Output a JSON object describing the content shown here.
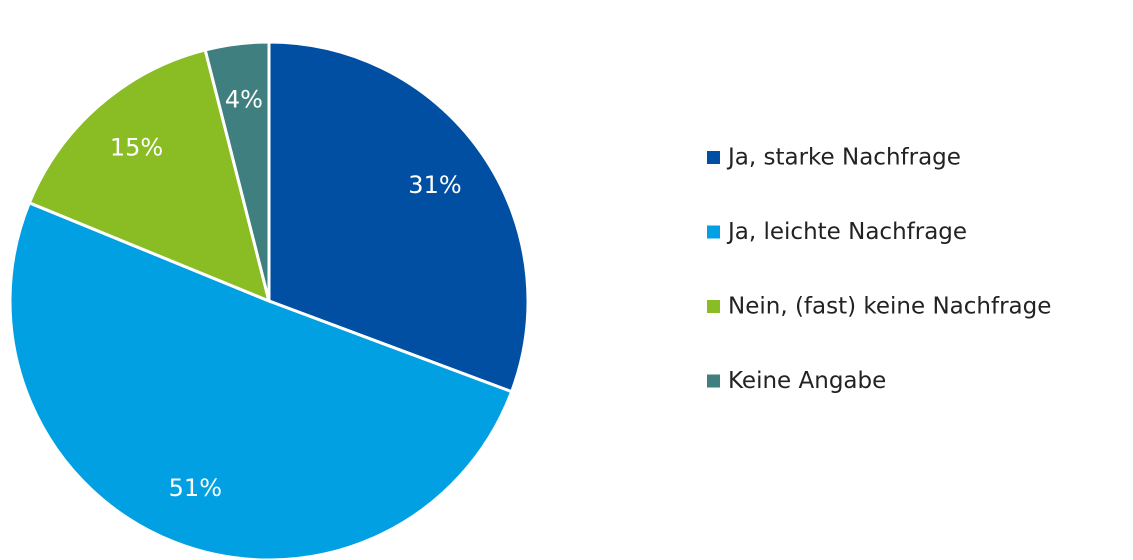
{
  "chart_data": {
    "type": "pie",
    "categories": [
      "Ja, starke Nachfrage",
      "Ja, leichte Nachfrage",
      "Nein, (fast) keine Nachfrage",
      "Keine Angabe"
    ],
    "values": [
      31,
      51,
      15,
      4
    ],
    "value_labels": [
      "31%",
      "51%",
      "15%",
      "4%"
    ],
    "colors": [
      "#004fa3",
      "#00a0e3",
      "#8abd24",
      "#3f7f7f"
    ],
    "legend": "right"
  }
}
